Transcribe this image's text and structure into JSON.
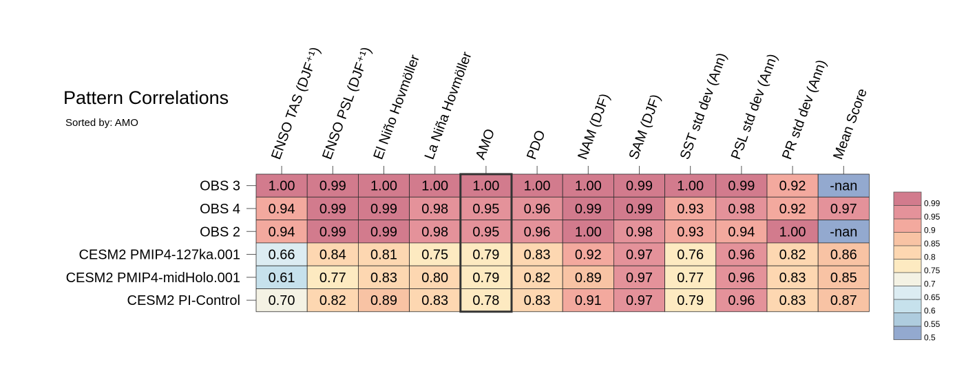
{
  "title": "Pattern Correlations",
  "subtitle": "Sorted by: AMO",
  "chart_data": {
    "type": "heatmap",
    "title": "Pattern Correlations",
    "subtitle": "Sorted by: AMO",
    "columns": [
      "ENSO TAS (DJF⁺¹)",
      "ENSO PSL (DJF⁺¹)",
      "El Niño Hovmöller",
      "La Niña Hovmöller",
      "AMO",
      "PDO",
      "NAM (DJF)",
      "SAM (DJF)",
      "SST std dev (Ann)",
      "PSL std dev (Ann)",
      "PR std dev (Ann)",
      "Mean Score"
    ],
    "rows": [
      "OBS 3",
      "OBS 4",
      "OBS 2",
      "CESM2 PMIP4-127ka.001",
      "CESM2 PMIP4-midHolo.001",
      "CESM2 PI-Control"
    ],
    "cell_labels": [
      [
        "1.00",
        "0.99",
        "1.00",
        "1.00",
        "1.00",
        "1.00",
        "1.00",
        "0.99",
        "1.00",
        "0.99",
        "0.92",
        "-nan"
      ],
      [
        "0.94",
        "0.99",
        "0.99",
        "0.98",
        "0.95",
        "0.96",
        "0.99",
        "0.99",
        "0.93",
        "0.98",
        "0.92",
        "0.97"
      ],
      [
        "0.94",
        "0.99",
        "0.99",
        "0.98",
        "0.95",
        "0.96",
        "1.00",
        "0.98",
        "0.93",
        "0.94",
        "1.00",
        "-nan"
      ],
      [
        "0.66",
        "0.84",
        "0.81",
        "0.75",
        "0.79",
        "0.83",
        "0.92",
        "0.97",
        "0.76",
        "0.96",
        "0.82",
        "0.86"
      ],
      [
        "0.61",
        "0.77",
        "0.83",
        "0.80",
        "0.79",
        "0.82",
        "0.89",
        "0.97",
        "0.77",
        "0.96",
        "0.83",
        "0.85"
      ],
      [
        "0.70",
        "0.82",
        "0.89",
        "0.83",
        "0.78",
        "0.83",
        "0.91",
        "0.97",
        "0.79",
        "0.96",
        "0.83",
        "0.87"
      ]
    ],
    "values": [
      [
        1.0,
        0.99,
        1.0,
        1.0,
        1.0,
        1.0,
        1.0,
        0.99,
        1.0,
        0.99,
        0.92,
        null
      ],
      [
        0.94,
        0.99,
        0.99,
        0.98,
        0.95,
        0.96,
        0.99,
        0.99,
        0.93,
        0.98,
        0.92,
        0.97
      ],
      [
        0.94,
        0.99,
        0.99,
        0.98,
        0.95,
        0.96,
        1.0,
        0.98,
        0.93,
        0.94,
        1.0,
        null
      ],
      [
        0.66,
        0.84,
        0.81,
        0.75,
        0.79,
        0.83,
        0.92,
        0.97,
        0.76,
        0.96,
        0.82,
        0.86
      ],
      [
        0.61,
        0.77,
        0.83,
        0.8,
        0.79,
        0.82,
        0.89,
        0.97,
        0.77,
        0.96,
        0.83,
        0.85
      ],
      [
        0.7,
        0.82,
        0.89,
        0.83,
        0.78,
        0.83,
        0.91,
        0.97,
        0.79,
        0.96,
        0.83,
        0.87
      ]
    ],
    "highlighted_column": "AMO",
    "colorbar": {
      "labels": [
        "0.99",
        "0.95",
        "0.9",
        "0.85",
        "0.8",
        "0.75",
        "0.7",
        "0.65",
        "0.6",
        "0.55",
        "0.5"
      ],
      "bins": [
        {
          "min": 0.99,
          "color": "#d27b8d"
        },
        {
          "min": 0.95,
          "color": "#e4929a"
        },
        {
          "min": 0.9,
          "color": "#f3a99e"
        },
        {
          "min": 0.85,
          "color": "#f8c3a4"
        },
        {
          "min": 0.8,
          "color": "#fdd7b1"
        },
        {
          "min": 0.75,
          "color": "#fdeac1"
        },
        {
          "min": 0.7,
          "color": "#f4f2e4"
        },
        {
          "min": 0.65,
          "color": "#dcecf2"
        },
        {
          "min": 0.6,
          "color": "#c6e1ec"
        },
        {
          "min": 0.55,
          "color": "#aeccde"
        },
        {
          "min": 0.5,
          "color": "#93a9cf"
        }
      ],
      "nan_color": "#93a9cf"
    }
  }
}
